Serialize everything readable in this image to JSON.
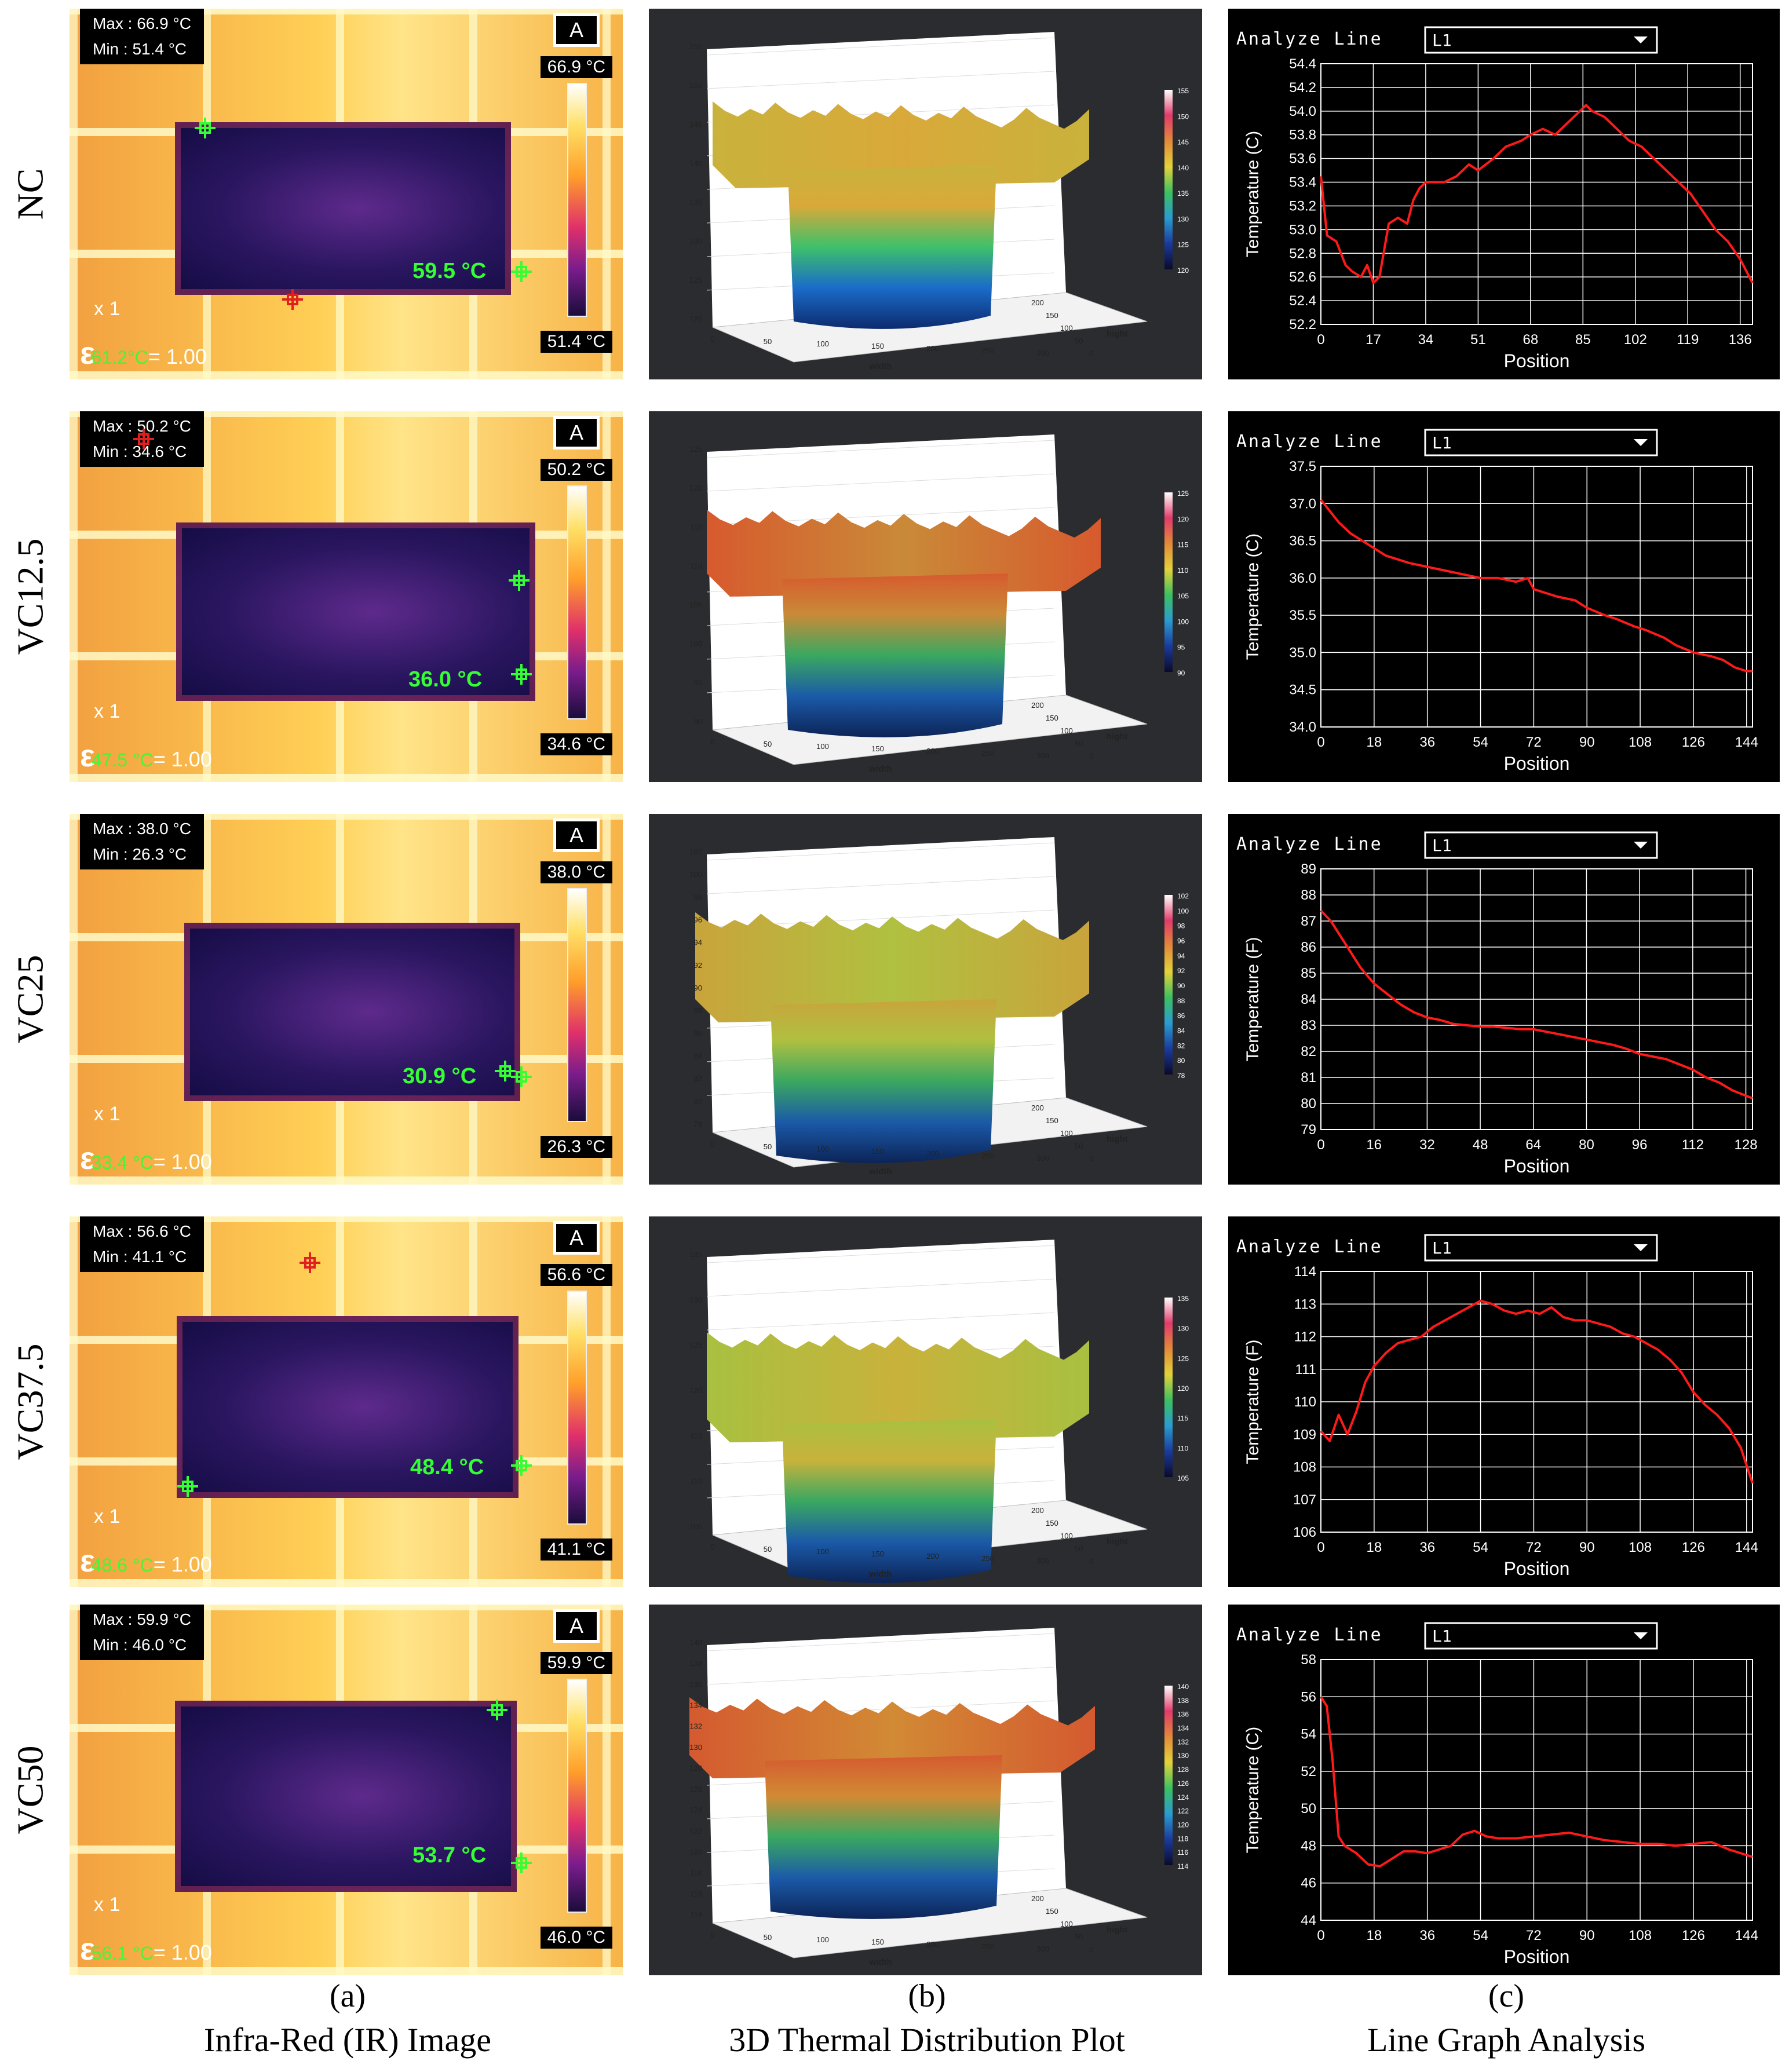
{
  "rows": [
    {
      "label": "NC",
      "ir": {
        "max": "Max : 66.9 °C",
        "min": "Min : 51.4 °C",
        "mode": "A",
        "scale_top": "66.9 °C",
        "scale_bottom": "51.4 °C",
        "spot": "59.5 °C",
        "zoom": "x 1",
        "epsilon": "= 1.00",
        "ghost": "61.2°C"
      },
      "surface": {
        "z_ticks": [
          "155",
          "150",
          "145",
          "140",
          "135",
          "130",
          "125",
          "120"
        ],
        "legend": [
          "155",
          "150",
          "145",
          "140",
          "135",
          "130",
          "125",
          "120"
        ],
        "width_ticks": [
          "0",
          "50",
          "100",
          "150",
          "200",
          "250",
          "300"
        ],
        "hight_ticks": [
          "0",
          "50",
          "100",
          "150",
          "200"
        ],
        "xlabel": "width",
        "ylabel": "hight"
      },
      "line": {
        "title": "Analyze Line",
        "selector": "L1",
        "ylabel": "Temperature (C)",
        "xlabel": "Position",
        "y_ticks": [
          "54.4",
          "54.2",
          "54.0",
          "53.8",
          "53.6",
          "53.4",
          "53.2",
          "53.0",
          "52.8",
          "52.6",
          "52.4",
          "52.2"
        ],
        "x_ticks": [
          "0",
          "17",
          "34",
          "51",
          "68",
          "85",
          "102",
          "119",
          "136"
        ],
        "ylim": [
          52.2,
          54.4
        ],
        "xlim": [
          0,
          140
        ],
        "x": [
          0,
          2,
          5,
          8,
          10,
          13,
          15,
          17,
          19,
          21,
          22,
          25,
          28,
          30,
          32,
          34,
          36,
          40,
          44,
          48,
          51,
          56,
          60,
          65,
          68,
          72,
          76,
          80,
          84,
          86,
          88,
          92,
          96,
          100,
          104,
          108,
          112,
          116,
          120,
          124,
          128,
          132,
          136,
          140
        ],
        "y": [
          53.45,
          52.95,
          52.9,
          52.7,
          52.65,
          52.6,
          52.7,
          52.55,
          52.6,
          52.9,
          53.05,
          53.1,
          53.05,
          53.25,
          53.35,
          53.4,
          53.4,
          53.4,
          53.45,
          53.55,
          53.5,
          53.6,
          53.7,
          53.75,
          53.8,
          53.85,
          53.8,
          53.9,
          54.0,
          54.05,
          54.0,
          53.95,
          53.85,
          53.75,
          53.7,
          53.6,
          53.5,
          53.4,
          53.3,
          53.15,
          53.0,
          52.9,
          52.75,
          52.55
        ]
      }
    },
    {
      "label": "VC12.5",
      "ir": {
        "max": "Max : 50.2 °C",
        "min": "Min : 34.6 °C",
        "mode": "A",
        "scale_top": "50.2 °C",
        "scale_bottom": "34.6 °C",
        "spot": "36.0 °C",
        "zoom": "x 1",
        "epsilon": "= 1.00",
        "ghost": "47.5 °C"
      },
      "surface": {
        "z_ticks": [
          "125",
          "120",
          "115",
          "110",
          "105",
          "100",
          "95",
          "90"
        ],
        "legend": [
          "125",
          "120",
          "115",
          "110",
          "105",
          "100",
          "95",
          "90"
        ],
        "width_ticks": [
          "0",
          "50",
          "100",
          "150",
          "200",
          "250",
          "300"
        ],
        "hight_ticks": [
          "0",
          "50",
          "100",
          "150",
          "200"
        ],
        "xlabel": "width",
        "ylabel": "hight"
      },
      "line": {
        "title": "Analyze Line",
        "selector": "L1",
        "ylabel": "Temperature (C)",
        "xlabel": "Position",
        "y_ticks": [
          "37.5",
          "37.0",
          "36.5",
          "36.0",
          "35.5",
          "35.0",
          "34.5",
          "34.0"
        ],
        "x_ticks": [
          "0",
          "18",
          "36",
          "54",
          "72",
          "90",
          "108",
          "126",
          "144"
        ],
        "ylim": [
          34.0,
          37.5
        ],
        "xlim": [
          0,
          146
        ],
        "x": [
          0,
          3,
          6,
          10,
          14,
          18,
          22,
          26,
          30,
          36,
          42,
          48,
          54,
          60,
          66,
          70,
          72,
          76,
          80,
          86,
          90,
          96,
          100,
          106,
          110,
          116,
          120,
          126,
          132,
          136,
          140,
          144,
          146
        ],
        "y": [
          37.05,
          36.9,
          36.75,
          36.6,
          36.5,
          36.4,
          36.3,
          36.25,
          36.2,
          36.15,
          36.1,
          36.05,
          36.0,
          36.0,
          35.95,
          36.0,
          35.85,
          35.8,
          35.75,
          35.7,
          35.6,
          35.5,
          35.45,
          35.35,
          35.3,
          35.2,
          35.1,
          35.0,
          34.95,
          34.9,
          34.8,
          34.75,
          34.75
        ]
      }
    },
    {
      "label": "VC25",
      "ir": {
        "max": "Max : 38.0 °C",
        "min": "Min : 26.3 °C",
        "mode": "A",
        "scale_top": "38.0 °C",
        "scale_bottom": "26.3 °C",
        "spot": "30.9 °C",
        "zoom": "x 1",
        "epsilon": "= 1.00",
        "ghost": "33.4 °C"
      },
      "surface": {
        "z_ticks": [
          "102",
          "100",
          "98",
          "96",
          "94",
          "92",
          "90",
          "88",
          "86",
          "84",
          "82",
          "80",
          "78"
        ],
        "legend": [
          "102",
          "100",
          "98",
          "96",
          "94",
          "92",
          "90",
          "88",
          "86",
          "84",
          "82",
          "80",
          "78"
        ],
        "width_ticks": [
          "0",
          "50",
          "100",
          "150",
          "200",
          "250",
          "300"
        ],
        "hight_ticks": [
          "0",
          "50",
          "100",
          "150",
          "200"
        ],
        "xlabel": "width",
        "ylabel": "hight"
      },
      "line": {
        "title": "Analyze Line",
        "selector": "L1",
        "ylabel": "Temperature (F)",
        "xlabel": "Position",
        "y_ticks": [
          "89",
          "88",
          "87",
          "86",
          "85",
          "84",
          "83",
          "82",
          "81",
          "80",
          "79"
        ],
        "x_ticks": [
          "0",
          "16",
          "32",
          "48",
          "64",
          "80",
          "96",
          "112",
          "128"
        ],
        "ylim": [
          79,
          89
        ],
        "xlim": [
          0,
          130
        ],
        "x": [
          0,
          3,
          6,
          9,
          12,
          16,
          20,
          24,
          28,
          32,
          36,
          40,
          44,
          48,
          52,
          56,
          60,
          64,
          68,
          72,
          76,
          80,
          84,
          88,
          92,
          96,
          100,
          104,
          108,
          112,
          116,
          120,
          124,
          128,
          130
        ],
        "y": [
          87.4,
          87.0,
          86.4,
          85.8,
          85.2,
          84.6,
          84.2,
          83.8,
          83.5,
          83.3,
          83.2,
          83.05,
          83.0,
          82.95,
          82.95,
          82.9,
          82.85,
          82.85,
          82.75,
          82.65,
          82.55,
          82.45,
          82.35,
          82.25,
          82.1,
          81.9,
          81.8,
          81.7,
          81.5,
          81.3,
          81.0,
          80.8,
          80.5,
          80.3,
          80.2
        ]
      }
    },
    {
      "label": "VC37.5",
      "ir": {
        "max": "Max : 56.6 °C",
        "min": "Min : 41.1 °C",
        "mode": "A",
        "scale_top": "56.6 °C",
        "scale_bottom": "41.1 °C",
        "spot": "48.4 °C",
        "zoom": "x 1",
        "epsilon": "= 1.00",
        "ghost": "48.6 °C"
      },
      "surface": {
        "z_ticks": [
          "135",
          "130",
          "125",
          "120",
          "115",
          "110",
          "105"
        ],
        "legend": [
          "135",
          "130",
          "125",
          "120",
          "115",
          "110",
          "105"
        ],
        "width_ticks": [
          "0",
          "50",
          "100",
          "150",
          "200",
          "250",
          "300"
        ],
        "hight_ticks": [
          "0",
          "50",
          "100",
          "150",
          "200"
        ],
        "xlabel": "width",
        "ylabel": "hight"
      },
      "line": {
        "title": "Analyze Line",
        "selector": "L1",
        "ylabel": "Temperature (F)",
        "xlabel": "Position",
        "y_ticks": [
          "114",
          "113",
          "112",
          "111",
          "110",
          "109",
          "108",
          "107",
          "106"
        ],
        "x_ticks": [
          "0",
          "18",
          "36",
          "54",
          "72",
          "90",
          "108",
          "126",
          "144"
        ],
        "ylim": [
          106,
          114
        ],
        "xlim": [
          0,
          146
        ],
        "x": [
          0,
          3,
          6,
          9,
          12,
          15,
          18,
          22,
          26,
          30,
          34,
          38,
          42,
          46,
          50,
          54,
          58,
          62,
          66,
          70,
          74,
          78,
          82,
          86,
          90,
          94,
          98,
          102,
          106,
          110,
          114,
          118,
          122,
          126,
          130,
          134,
          138,
          142,
          146
        ],
        "y": [
          109.1,
          108.8,
          109.6,
          109.0,
          109.7,
          110.6,
          111.1,
          111.5,
          111.8,
          111.9,
          112.0,
          112.3,
          112.5,
          112.7,
          112.9,
          113.1,
          113.0,
          112.8,
          112.7,
          112.8,
          112.7,
          112.9,
          112.6,
          112.5,
          112.5,
          112.4,
          112.3,
          112.1,
          112.0,
          111.8,
          111.6,
          111.3,
          110.9,
          110.3,
          109.9,
          109.6,
          109.2,
          108.6,
          107.5
        ]
      }
    },
    {
      "label": "VC50",
      "ir": {
        "max": "Max : 59.9 °C",
        "min": "Min : 46.0 °C",
        "mode": "A",
        "scale_top": "59.9 °C",
        "scale_bottom": "46.0 °C",
        "spot": "53.7 °C",
        "zoom": "x 1",
        "epsilon": "= 1.00",
        "ghost": "56.1 °C"
      },
      "surface": {
        "z_ticks": [
          "140",
          "138",
          "136",
          "134",
          "132",
          "130",
          "128",
          "126",
          "124",
          "122",
          "120",
          "118",
          "116",
          "114"
        ],
        "legend": [
          "140",
          "138",
          "136",
          "134",
          "132",
          "130",
          "128",
          "126",
          "124",
          "122",
          "120",
          "118",
          "116",
          "114"
        ],
        "width_ticks": [
          "0",
          "50",
          "100",
          "150",
          "200",
          "250",
          "300"
        ],
        "hight_ticks": [
          "0",
          "50",
          "100",
          "150",
          "200"
        ],
        "xlabel": "width",
        "ylabel": "hight"
      },
      "line": {
        "title": "Analyze Line",
        "selector": "L1",
        "ylabel": "Temperature (C)",
        "xlabel": "Position",
        "y_ticks": [
          "58",
          "56",
          "54",
          "52",
          "50",
          "48",
          "46",
          "44"
        ],
        "x_ticks": [
          "0",
          "18",
          "36",
          "54",
          "72",
          "90",
          "108",
          "126",
          "144"
        ],
        "ylim": [
          44,
          58
        ],
        "xlim": [
          0,
          146
        ],
        "x": [
          0,
          2,
          4,
          6,
          8,
          12,
          16,
          20,
          24,
          28,
          32,
          36,
          40,
          44,
          48,
          52,
          56,
          60,
          66,
          72,
          78,
          84,
          90,
          96,
          102,
          108,
          114,
          120,
          126,
          132,
          138,
          144,
          146
        ],
        "y": [
          56.0,
          55.5,
          52.5,
          48.5,
          48.0,
          47.6,
          47.0,
          46.9,
          47.3,
          47.7,
          47.7,
          47.6,
          47.8,
          48.0,
          48.6,
          48.8,
          48.5,
          48.4,
          48.4,
          48.5,
          48.6,
          48.7,
          48.5,
          48.3,
          48.2,
          48.1,
          48.1,
          48.0,
          48.1,
          48.2,
          47.8,
          47.5,
          47.4
        ]
      }
    }
  ],
  "captions": [
    {
      "letter": "(a)",
      "text": "Infra-Red (IR) Image"
    },
    {
      "letter": "(b)",
      "text": "3D Thermal Distribution Plot"
    },
    {
      "letter": "(c)",
      "text": "Line Graph Analysis"
    }
  ],
  "colors": {
    "line": "#ff1a1a",
    "grid": "#ffffff",
    "spot_marker": "#33ff33",
    "hot_marker": "#e02020",
    "surface_bg": "#2b2c2f"
  }
}
